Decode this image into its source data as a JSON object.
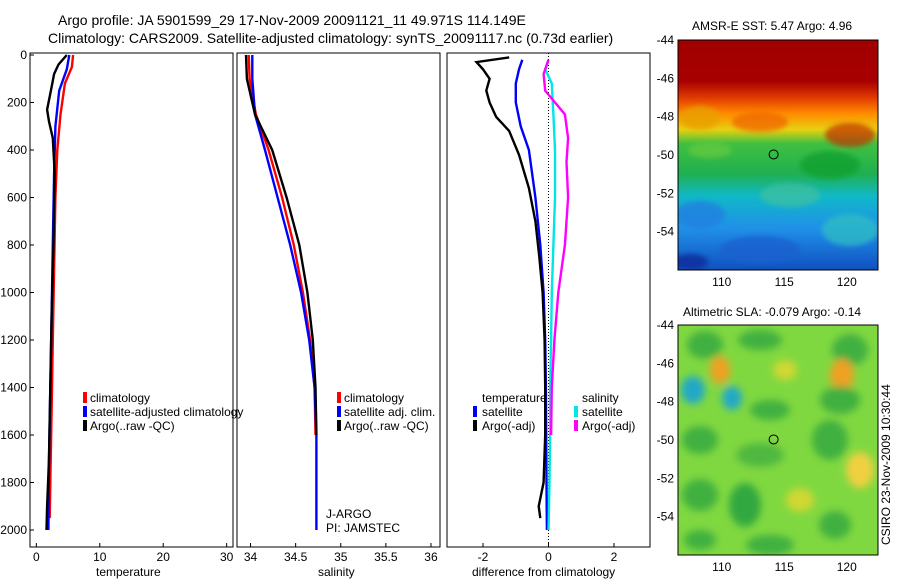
{
  "title": {
    "line1": "Argo profile: JA 5901599_29 17-Nov-2009 20091121_11 49.971S 114.149E",
    "line2": "Climatology: CARS2009. Satellite-adjusted climatology: synTS_20091117.nc (0.73d earlier)"
  },
  "colors": {
    "climatology": "#ff0000",
    "satellite": "#0000ff",
    "argo": "#000000",
    "sal_satellite": "#00e5e5",
    "sal_argo": "#ff00ff"
  },
  "credit": "CSIRO 23-Nov-2009 10:30:44",
  "chart_data": [
    {
      "type": "line",
      "panel": "temperature",
      "xlabel": "temperature",
      "xlim": [
        -1,
        31
      ],
      "xticks": [
        "0",
        "10",
        "20",
        "30"
      ],
      "xtick_values": [
        0,
        10,
        20,
        30
      ],
      "ylim": [
        0,
        2050
      ],
      "yticks": [
        "0",
        "200",
        "400",
        "600",
        "800",
        "1000",
        "1200",
        "1400",
        "1600",
        "1800",
        "2000"
      ],
      "ytick_values": [
        0,
        200,
        400,
        600,
        800,
        1000,
        1200,
        1400,
        1600,
        1800,
        2000
      ],
      "legend": [
        "climatology",
        "satellite-adjusted climatology",
        "Argo(..raw -QC)"
      ],
      "series": [
        {
          "name": "climatology",
          "color_key": "climatology",
          "points": [
            [
              5.8,
              0
            ],
            [
              5.6,
              50
            ],
            [
              4.5,
              120
            ],
            [
              3.8,
              250
            ],
            [
              3.3,
              400
            ],
            [
              3.0,
              600
            ],
            [
              2.8,
              900
            ],
            [
              2.6,
              1200
            ],
            [
              2.4,
              1500
            ],
            [
              2.2,
              1800
            ],
            [
              2.1,
              1950
            ]
          ]
        },
        {
          "name": "satellite-adjusted climatology",
          "color_key": "satellite",
          "points": [
            [
              5.2,
              0
            ],
            [
              4.8,
              60
            ],
            [
              3.6,
              150
            ],
            [
              3.0,
              300
            ],
            [
              2.8,
              500
            ],
            [
              2.6,
              800
            ],
            [
              2.4,
              1100
            ],
            [
              2.2,
              1400
            ],
            [
              2.0,
              1700
            ],
            [
              1.9,
              2000
            ]
          ]
        },
        {
          "name": "Argo(..raw -QC)",
          "color_key": "argo",
          "points": [
            [
              4.8,
              0
            ],
            [
              3.5,
              40
            ],
            [
              2.8,
              80
            ],
            [
              2.3,
              150
            ],
            [
              1.7,
              230
            ],
            [
              2.0,
              280
            ],
            [
              2.6,
              350
            ],
            [
              2.9,
              500
            ],
            [
              2.7,
              800
            ],
            [
              2.4,
              1100
            ],
            [
              2.2,
              1400
            ],
            [
              2.0,
              1700
            ],
            [
              1.7,
              1900
            ],
            [
              1.6,
              2000
            ]
          ]
        }
      ]
    },
    {
      "type": "line",
      "panel": "salinity",
      "xlabel": "salinity",
      "xlim": [
        33.85,
        36.1
      ],
      "xticks": [
        "34",
        "34.5",
        "35",
        "35.5",
        "36"
      ],
      "xtick_values": [
        34,
        34.5,
        35,
        35.5,
        36
      ],
      "ylim": [
        0,
        2050
      ],
      "legend": [
        "climatology",
        "satellite adj. clim.",
        "Argo(..raw -QC)"
      ],
      "annotations": [
        "J-ARGO",
        "PI: JAMSTEC"
      ],
      "series": [
        {
          "name": "climatology",
          "color_key": "climatology",
          "points": [
            [
              33.98,
              0
            ],
            [
              33.99,
              100
            ],
            [
              34.06,
              250
            ],
            [
              34.2,
              400
            ],
            [
              34.35,
              600
            ],
            [
              34.48,
              800
            ],
            [
              34.58,
              1000
            ],
            [
              34.66,
              1200
            ],
            [
              34.71,
              1400
            ],
            [
              34.72,
              1600
            ]
          ]
        },
        {
          "name": "satellite adj. clim.",
          "color_key": "satellite",
          "points": [
            [
              34.02,
              0
            ],
            [
              34.02,
              100
            ],
            [
              34.05,
              250
            ],
            [
              34.16,
              400
            ],
            [
              34.3,
              600
            ],
            [
              34.44,
              800
            ],
            [
              34.56,
              1000
            ],
            [
              34.65,
              1200
            ],
            [
              34.71,
              1400
            ],
            [
              34.73,
              1600
            ],
            [
              34.73,
              1800
            ],
            [
              34.73,
              2000
            ]
          ]
        },
        {
          "name": "Argo(..raw -QC)",
          "color_key": "argo",
          "points": [
            [
              33.95,
              0
            ],
            [
              33.96,
              100
            ],
            [
              34.05,
              250
            ],
            [
              34.24,
              400
            ],
            [
              34.4,
              600
            ],
            [
              34.54,
              800
            ],
            [
              34.63,
              1000
            ],
            [
              34.69,
              1200
            ],
            [
              34.72,
              1400
            ],
            [
              34.73,
              1600
            ]
          ]
        }
      ]
    },
    {
      "type": "line",
      "panel": "difference",
      "xlabel": "difference from climatology",
      "xlim": [
        -3.1,
        3.1
      ],
      "xticks": [
        "-2",
        "0",
        "2"
      ],
      "xtick_values": [
        -2,
        0,
        2
      ],
      "ylim": [
        0,
        2050
      ],
      "legend_left_title": "temperature",
      "legend_right_title": "salinity",
      "legend_left": [
        "satellite",
        "Argo(-adj)"
      ],
      "legend_right": [
        "satellite",
        "Argo(-adj)"
      ],
      "series": [
        {
          "name": "temperature satellite",
          "color_key": "satellite",
          "points": [
            [
              -0.8,
              20
            ],
            [
              -0.9,
              60
            ],
            [
              -1.0,
              120
            ],
            [
              -1.0,
              200
            ],
            [
              -0.85,
              300
            ],
            [
              -0.6,
              400
            ],
            [
              -0.4,
              600
            ],
            [
              -0.25,
              800
            ],
            [
              -0.15,
              1000
            ],
            [
              -0.1,
              1200
            ],
            [
              -0.08,
              1400
            ],
            [
              -0.07,
              1600
            ],
            [
              -0.06,
              1800
            ],
            [
              -0.05,
              2000
            ]
          ]
        },
        {
          "name": "temperature Argo(-adj)",
          "color_key": "argo",
          "points": [
            [
              -1.2,
              10
            ],
            [
              -2.2,
              30
            ],
            [
              -2.0,
              60
            ],
            [
              -1.8,
              100
            ],
            [
              -1.9,
              150
            ],
            [
              -1.8,
              200
            ],
            [
              -1.6,
              260
            ],
            [
              -1.2,
              320
            ],
            [
              -0.9,
              420
            ],
            [
              -0.6,
              560
            ],
            [
              -0.4,
              700
            ],
            [
              -0.28,
              850
            ],
            [
              -0.18,
              1000
            ],
            [
              -0.12,
              1200
            ],
            [
              -0.1,
              1400
            ],
            [
              -0.1,
              1600
            ],
            [
              -0.15,
              1800
            ],
            [
              -0.3,
              1900
            ],
            [
              -0.25,
              1950
            ]
          ]
        },
        {
          "name": "salinity satellite",
          "color_key": "sal_satellite",
          "points": [
            [
              0.0,
              20
            ],
            [
              -0.1,
              60
            ],
            [
              0.1,
              120
            ],
            [
              0.15,
              250
            ],
            [
              0.2,
              400
            ],
            [
              0.2,
              600
            ],
            [
              0.15,
              800
            ],
            [
              0.1,
              1000
            ],
            [
              0.08,
              1200
            ],
            [
              0.05,
              1400
            ],
            [
              0.05,
              1600
            ],
            [
              0.03,
              1800
            ],
            [
              0.0,
              2000
            ]
          ]
        },
        {
          "name": "salinity Argo(-adj)",
          "color_key": "sal_argo",
          "points": [
            [
              0.0,
              20
            ],
            [
              -0.15,
              80
            ],
            [
              -0.1,
              150
            ],
            [
              0.2,
              200
            ],
            [
              0.5,
              250
            ],
            [
              0.6,
              350
            ],
            [
              0.55,
              450
            ],
            [
              0.6,
              600
            ],
            [
              0.5,
              800
            ],
            [
              0.3,
              1000
            ],
            [
              0.18,
              1200
            ],
            [
              0.1,
              1400
            ],
            [
              0.08,
              1600
            ]
          ]
        }
      ],
      "reference_line": 0
    },
    {
      "type": "heatmap",
      "panel": "sst-map",
      "title": "AMSR-E SST: 5.47 Argo: 4.96",
      "xlim": [
        106.5,
        122.5
      ],
      "ylim": [
        -56,
        -44
      ],
      "xticks": [
        "110",
        "115",
        "120"
      ],
      "xtick_values": [
        110,
        115,
        120
      ],
      "yticks": [
        "-44",
        "-46",
        "-48",
        "-50",
        "-52",
        "-54"
      ],
      "ytick_values": [
        -44,
        -46,
        -48,
        -50,
        -52,
        -54
      ],
      "marker": [
        114.149,
        -49.971
      ]
    },
    {
      "type": "heatmap",
      "panel": "sla-map",
      "title": "Altimetric SLA: -0.079 Argo: -0.14",
      "xlim": [
        106.5,
        122.5
      ],
      "ylim": [
        -56,
        -44
      ],
      "xticks": [
        "110",
        "115",
        "120"
      ],
      "xtick_values": [
        110,
        115,
        120
      ],
      "yticks": [
        "-44",
        "-46",
        "-48",
        "-50",
        "-52",
        "-54"
      ],
      "ytick_values": [
        -44,
        -46,
        -48,
        -50,
        -52,
        -54
      ],
      "marker": [
        114.149,
        -49.971
      ]
    }
  ]
}
